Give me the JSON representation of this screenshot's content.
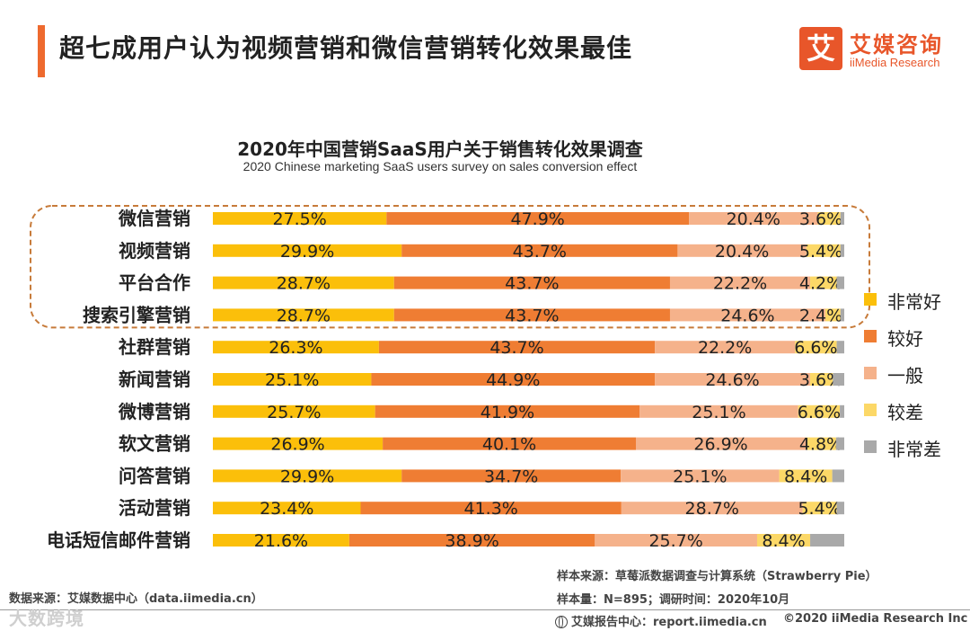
{
  "header": {
    "title": "超七成用户认为视频营销和微信营销转化效果最佳",
    "logo_mark": "艾",
    "logo_cn": "艾媒咨询",
    "logo_en": "iiMedia Research"
  },
  "chart_data": {
    "type": "bar",
    "orientation": "horizontal",
    "stacked": true,
    "title": "2020年中国营销SaaS用户关于销售转化效果调查",
    "subtitle": "2020 Chinese marketing SaaS users survey on sales conversion effect",
    "categories": [
      "微信营销",
      "视频营销",
      "平台合作",
      "搜索引擎营销",
      "社群营销",
      "新闻营销",
      "微博营销",
      "软文营销",
      "问答营销",
      "活动营销",
      "电话短信邮件营销"
    ],
    "series": [
      {
        "name": "非常好",
        "color": "#fbbf0a",
        "values": [
          27.5,
          29.9,
          28.7,
          28.7,
          26.3,
          25.1,
          25.7,
          26.9,
          29.9,
          23.4,
          21.6
        ]
      },
      {
        "name": "较好",
        "color": "#ef7d33",
        "values": [
          47.9,
          43.7,
          43.7,
          43.7,
          43.7,
          44.9,
          41.9,
          40.1,
          34.7,
          41.3,
          38.9
        ]
      },
      {
        "name": "一般",
        "color": "#f5b28b",
        "values": [
          20.4,
          20.4,
          22.2,
          24.6,
          22.2,
          24.6,
          25.1,
          26.9,
          25.1,
          28.7,
          25.7
        ]
      },
      {
        "name": "较差",
        "color": "#fcd867",
        "values": [
          3.6,
          5.4,
          4.2,
          2.4,
          6.6,
          3.6,
          6.6,
          4.8,
          8.4,
          5.4,
          8.4
        ]
      },
      {
        "name": "非常差",
        "color": "#a9a9a9",
        "values": [
          0.6,
          0.6,
          1.2,
          0.6,
          1.2,
          1.8,
          0.7,
          1.3,
          1.9,
          1.2,
          5.4
        ]
      }
    ],
    "value_labels": [
      [
        "27.5%",
        "47.9%",
        "20.4%",
        "3.6%"
      ],
      [
        "29.9%",
        "43.7%",
        "20.4%",
        "5.4%"
      ],
      [
        "28.7%",
        "43.7%",
        "22.2%",
        "4.2%"
      ],
      [
        "28.7%",
        "43.7%",
        "24.6%",
        "2.4%"
      ],
      [
        "26.3%",
        "43.7%",
        "22.2%",
        "6.6%"
      ],
      [
        "25.1%",
        "44.9%",
        "24.6%",
        "3.6%"
      ],
      [
        "25.7%",
        "41.9%",
        "25.1%",
        "6.6%"
      ],
      [
        "26.9%",
        "40.1%",
        "26.9%",
        "4.8%"
      ],
      [
        "29.9%",
        "34.7%",
        "25.1%",
        "8.4%"
      ],
      [
        "23.4%",
        "41.3%",
        "28.7%",
        "5.4%"
      ],
      [
        "21.6%",
        "38.9%",
        "25.7%",
        "8.4%"
      ]
    ],
    "highlighted_categories": [
      "微信营销",
      "视频营销",
      "平台合作",
      "搜索引擎营销"
    ],
    "xlim": [
      0,
      100
    ],
    "legend_position": "right"
  },
  "footer": {
    "data_source": "数据来源：艾媒数据中心（data.iimedia.cn）",
    "sample_source": "样本来源：草莓派数据调查与计算系统（Strawberry Pie）",
    "sample_size": "样本量：N=895；调研时间：2020年10月",
    "report_center": "艾媒报告中心：report.iimedia.cn",
    "copyright": "©2020  iiMedia Research  Inc",
    "watermark": "大数跨境"
  }
}
